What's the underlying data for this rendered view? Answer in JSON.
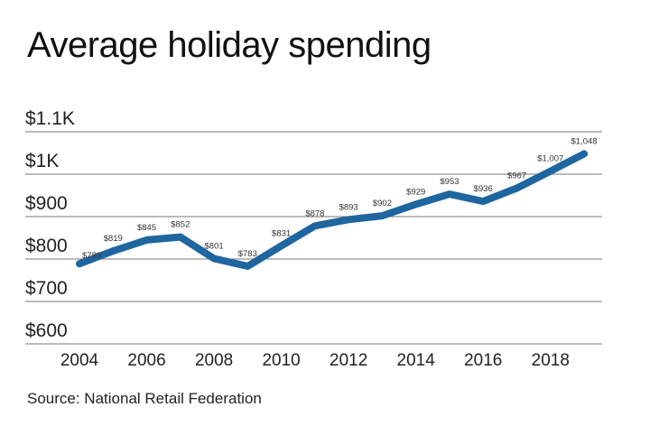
{
  "chart_data": {
    "type": "line",
    "title": "Average holiday spending",
    "source": "Source: National Retail Federation",
    "xlabel": "",
    "ylabel": "",
    "x": [
      2004,
      2005,
      2006,
      2007,
      2008,
      2009,
      2010,
      2011,
      2012,
      2013,
      2014,
      2015,
      2016,
      2017,
      2018,
      2019
    ],
    "series": [
      {
        "name": "Average holiday spending",
        "values": [
          789,
          819,
          845,
          852,
          801,
          783,
          831,
          878,
          893,
          902,
          929,
          953,
          936,
          967,
          1007,
          1048
        ]
      }
    ],
    "data_labels": [
      "$789",
      "$819",
      "$845",
      "$852",
      "$801",
      "$783",
      "$831",
      "$878",
      "$893",
      "$902",
      "$929",
      "$953",
      "$936",
      "$967",
      "$1,007",
      "$1,048"
    ],
    "ylim": [
      600,
      1100
    ],
    "yticks": [
      600,
      700,
      800,
      900,
      1000,
      1100
    ],
    "ytick_labels": [
      "$600",
      "$700",
      "$800",
      "$900",
      "$1K",
      "$1.1K"
    ],
    "xticks": [
      2004,
      2006,
      2008,
      2010,
      2012,
      2014,
      2016,
      2018
    ],
    "xtick_labels": [
      "2004",
      "2006",
      "2008",
      "2010",
      "2012",
      "2014",
      "2016",
      "2018"
    ],
    "grid": true,
    "line_color": "#1f66a0"
  }
}
